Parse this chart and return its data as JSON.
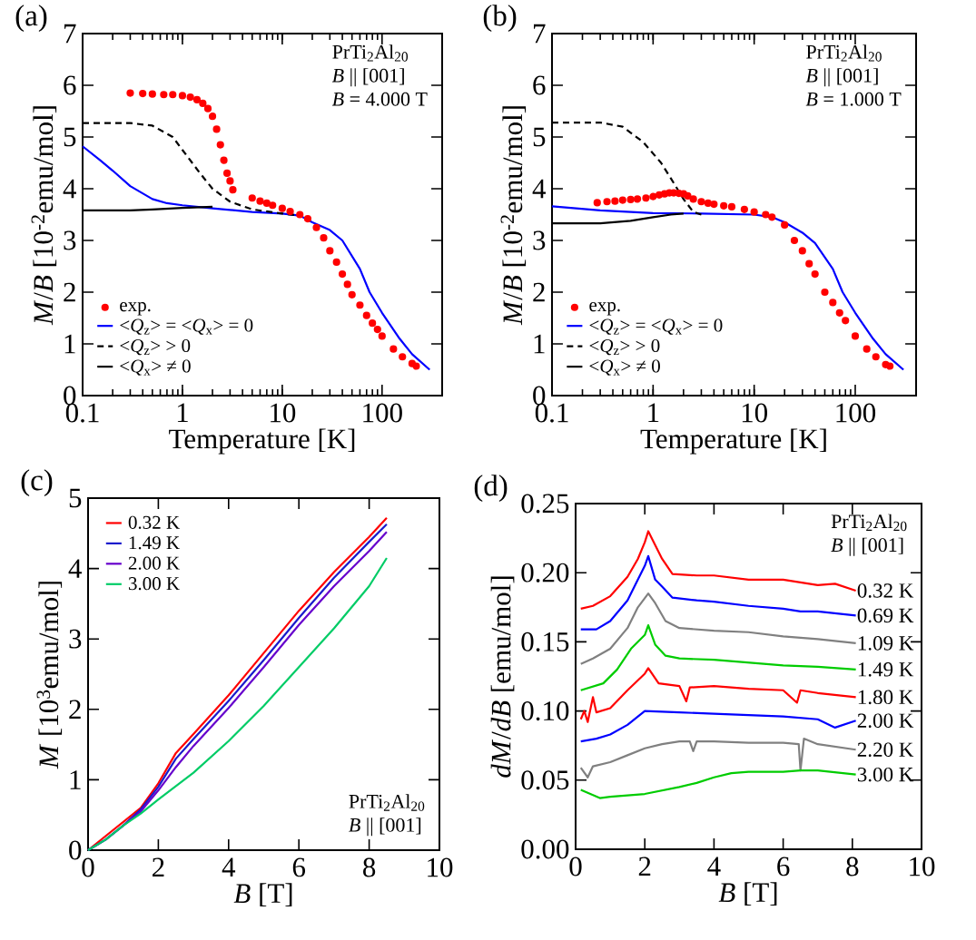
{
  "chart_data": [
    {
      "type": "line",
      "xlabel": "Temperature [K]",
      "ylabel": "*M*/*B* [10$^{-2}$emu/mol]",
      "log": "x",
      "xlim": [
        0.1,
        400
      ],
      "ylim": [
        0,
        7
      ],
      "xticks": [
        0.1,
        1,
        10,
        100
      ],
      "yticks": [
        0,
        1,
        2,
        3,
        4,
        5,
        6,
        7
      ],
      "legend": "bottom left",
      "annotations": [
        "(a)",
        "PrTi$_{2}$Al$_{20}$",
        "*B* || [001]",
        "*B* = 4.000 T"
      ],
      "series": [
        {
          "name": "exp.",
          "type": "scatter",
          "color": "#ff0000",
          "x": [
            0.3,
            0.4,
            0.5,
            0.65,
            0.8,
            1.0,
            1.2,
            1.4,
            1.6,
            1.8,
            2.0,
            2.2,
            2.4,
            2.6,
            2.8,
            3.0,
            3.2,
            5,
            6,
            7,
            8,
            10,
            12,
            15,
            18,
            22,
            26,
            30,
            35,
            40,
            45,
            50,
            60,
            70,
            80,
            90,
            100,
            130,
            160,
            200,
            220
          ],
          "values": [
            5.85,
            5.84,
            5.83,
            5.82,
            5.82,
            5.8,
            5.77,
            5.72,
            5.65,
            5.55,
            5.4,
            5.15,
            4.85,
            4.55,
            4.3,
            4.15,
            3.98,
            3.82,
            3.76,
            3.72,
            3.68,
            3.62,
            3.56,
            3.5,
            3.42,
            3.25,
            3.05,
            2.8,
            2.58,
            2.35,
            2.15,
            1.95,
            1.75,
            1.55,
            1.4,
            1.28,
            1.15,
            0.9,
            0.75,
            0.62,
            0.57
          ]
        },
        {
          "name": "<*Q*$_{z}$> = <*Q*$_{x}$> = 0",
          "color": "#0000ff",
          "x": [
            0.1,
            0.15,
            0.2,
            0.3,
            0.5,
            0.7,
            1,
            2,
            5,
            10,
            15,
            20,
            30,
            40,
            60,
            75,
            100,
            150,
            200,
            300
          ],
          "values": [
            4.82,
            4.55,
            4.35,
            4.05,
            3.8,
            3.72,
            3.68,
            3.62,
            3.55,
            3.52,
            3.48,
            3.35,
            3.2,
            3.0,
            2.45,
            2.0,
            1.6,
            1.1,
            0.8,
            0.5
          ]
        },
        {
          "name": "<*Q*$_{z}$> > 0",
          "line_style": "dashed",
          "color": "#000000",
          "x": [
            0.1,
            0.3,
            0.5,
            0.8,
            1.0,
            1.5,
            2,
            3,
            5,
            10,
            15
          ],
          "values": [
            5.27,
            5.27,
            5.22,
            5.0,
            4.75,
            4.3,
            4.0,
            3.75,
            3.6,
            3.52,
            3.48
          ]
        },
        {
          "name": "<*Q*$_{x}$> ≠ 0",
          "color": "#000000",
          "x": [
            0.1,
            0.3,
            0.5,
            1,
            2
          ],
          "values": [
            3.58,
            3.58,
            3.6,
            3.63,
            3.65
          ]
        }
      ]
    },
    {
      "type": "line",
      "xlabel": "Temperature [K]",
      "ylabel": "*M*/*B* [10$^{-2}$emu/mol]",
      "log": "x",
      "xlim": [
        0.1,
        400
      ],
      "ylim": [
        0,
        7
      ],
      "xticks": [
        0.1,
        1,
        10,
        100
      ],
      "yticks": [
        0,
        1,
        2,
        3,
        4,
        5,
        6,
        7
      ],
      "legend": "bottom left",
      "annotations": [
        "(b)",
        "PrTi$_{2}$Al$_{20}$",
        "*B* || [001]",
        "*B* = 1.000 T"
      ],
      "series": [
        {
          "name": "exp.",
          "type": "scatter",
          "color": "#ff0000",
          "x": [
            0.28,
            0.35,
            0.42,
            0.5,
            0.6,
            0.7,
            0.85,
            1.0,
            1.15,
            1.3,
            1.45,
            1.6,
            1.8,
            2.0,
            2.2,
            2.5,
            3,
            3.5,
            4,
            5,
            6,
            8,
            10,
            13,
            15,
            20,
            25,
            30,
            35,
            40,
            50,
            60,
            70,
            80,
            100,
            130,
            160,
            200,
            220
          ],
          "values": [
            3.73,
            3.75,
            3.76,
            3.78,
            3.79,
            3.8,
            3.82,
            3.85,
            3.88,
            3.9,
            3.92,
            3.92,
            3.91,
            3.9,
            3.86,
            3.8,
            3.75,
            3.72,
            3.7,
            3.67,
            3.65,
            3.6,
            3.55,
            3.5,
            3.45,
            3.3,
            3.0,
            2.8,
            2.55,
            2.35,
            2.0,
            1.8,
            1.6,
            1.45,
            1.15,
            0.9,
            0.75,
            0.6,
            0.57
          ]
        },
        {
          "name": "<*Q*$_{z}$> = <*Q*$_{x}$> = 0",
          "color": "#0000ff",
          "x": [
            0.1,
            0.3,
            1,
            3,
            10,
            15,
            20,
            30,
            40,
            60,
            75,
            100,
            150,
            200,
            300
          ],
          "values": [
            3.66,
            3.58,
            3.53,
            3.52,
            3.5,
            3.45,
            3.35,
            3.15,
            2.95,
            2.45,
            2.0,
            1.6,
            1.1,
            0.8,
            0.5
          ]
        },
        {
          "name": "<*Q*$_{z}$> > 0",
          "line_style": "dashed",
          "color": "#000000",
          "x": [
            0.1,
            0.3,
            0.5,
            0.8,
            1.2,
            1.5,
            2,
            2.5,
            3
          ],
          "values": [
            5.28,
            5.28,
            5.2,
            4.9,
            4.5,
            4.2,
            3.8,
            3.55,
            3.5
          ]
        },
        {
          "name": "<*Q*$_{x}$> ≠ 0",
          "color": "#000000",
          "x": [
            0.1,
            0.3,
            0.6,
            1,
            1.5,
            2
          ],
          "values": [
            3.33,
            3.33,
            3.38,
            3.45,
            3.5,
            3.52
          ]
        }
      ]
    },
    {
      "type": "line",
      "xlabel": "*B* [T]",
      "ylabel": "*M* [10$^{3}$emu/mol]",
      "xlim": [
        0,
        10
      ],
      "ylim": [
        0,
        5
      ],
      "xticks": [
        0,
        2,
        4,
        6,
        8,
        10
      ],
      "yticks": [
        0,
        1,
        2,
        3,
        4,
        5
      ],
      "legend": "top left",
      "annotations": [
        "(c)",
        "PrTi$_{2}$Al$_{20}$",
        "*B* || [001]"
      ],
      "series": [
        {
          "name": "0.32 K",
          "color": "#ff0000",
          "x": [
            0,
            0.5,
            1,
            1.5,
            2,
            2.5,
            3,
            4,
            5,
            6,
            7,
            8,
            8.5
          ],
          "values": [
            0,
            null,
            null,
            0.6,
            0.95,
            1.38,
            1.65,
            2.2,
            2.8,
            3.4,
            3.95,
            4.45,
            4.72
          ]
        },
        {
          "name": "1.49 K",
          "color": "#1a1acc",
          "x": [
            0,
            0.5,
            1,
            1.5,
            2,
            2.5,
            3,
            4,
            5,
            6,
            7,
            8,
            8.5
          ],
          "values": [
            0,
            0.15,
            0.35,
            0.58,
            0.9,
            1.3,
            1.58,
            2.12,
            2.7,
            3.3,
            3.87,
            4.38,
            4.63
          ]
        },
        {
          "name": "2.00 K",
          "color": "#6600cc",
          "x": [
            0,
            0.5,
            1,
            1.5,
            2,
            2.5,
            3,
            4,
            5,
            6,
            7,
            8,
            8.5
          ],
          "values": [
            0,
            0.15,
            0.35,
            0.55,
            0.85,
            1.18,
            1.48,
            2.02,
            2.6,
            3.2,
            3.75,
            4.25,
            4.52
          ]
        },
        {
          "name": "3.00 K",
          "color": "#00cc66",
          "x": [
            0,
            0.5,
            1,
            1.5,
            2,
            3,
            4,
            5,
            6,
            7,
            8,
            8.5
          ],
          "values": [
            0,
            0.15,
            0.35,
            0.52,
            0.72,
            1.1,
            1.55,
            2.05,
            2.6,
            3.15,
            3.75,
            4.15
          ]
        }
      ]
    },
    {
      "type": "line",
      "xlabel": "*B* [T]",
      "ylabel": "*dM*/*dB* [emu/mol]",
      "xlim": [
        0,
        10
      ],
      "ylim": [
        0,
        0.25
      ],
      "xticks": [
        0,
        2,
        4,
        6,
        8,
        10
      ],
      "yticks": [
        {
          "value": 0,
          "label": "0.00"
        },
        {
          "value": 0.05,
          "label": "0.05"
        },
        {
          "value": 0.1,
          "label": "0.10"
        },
        {
          "value": 0.15,
          "label": "0.15"
        },
        {
          "value": 0.2,
          "label": "0.20"
        },
        {
          "value": 0.25,
          "label": "0.25"
        }
      ],
      "annotations": [
        "(d)",
        "PrTi$_{2}$Al$_{20}$",
        "*B* || [001]"
      ],
      "series": [
        {
          "name": "0.32 K",
          "color": "#ff0000",
          "x": [
            0.15,
            0.5,
            1,
            1.5,
            1.8,
            2.0,
            2.1,
            2.3,
            2.5,
            2.8,
            3.5,
            4,
            5,
            6,
            7,
            7.5,
            8.1
          ],
          "values": [
            0.174,
            0.176,
            0.183,
            0.197,
            0.21,
            0.222,
            0.23,
            0.22,
            0.21,
            0.199,
            0.198,
            0.198,
            0.195,
            0.195,
            0.191,
            0.192,
            0.187
          ]
        },
        {
          "name": "0.69 K",
          "color": "#0000ff",
          "x": [
            0.15,
            0.6,
            1,
            1.5,
            1.8,
            2.0,
            2.1,
            2.3,
            2.5,
            2.8,
            3.5,
            4,
            5,
            6,
            6.5,
            7,
            8.1
          ],
          "values": [
            0.159,
            0.159,
            0.165,
            0.18,
            0.195,
            0.205,
            0.212,
            0.195,
            0.19,
            0.182,
            0.18,
            0.179,
            0.176,
            0.174,
            0.172,
            0.172,
            0.169
          ]
        },
        {
          "name": "1.09 K",
          "color": "#808080",
          "x": [
            0.15,
            0.5,
            1,
            1.5,
            1.8,
            2.1,
            2.3,
            2.6,
            3,
            4,
            5,
            6,
            7,
            8.1
          ],
          "values": [
            0.134,
            0.138,
            0.145,
            0.16,
            0.175,
            0.185,
            0.178,
            0.165,
            0.16,
            0.158,
            0.157,
            0.154,
            0.152,
            0.149
          ]
        },
        {
          "name": "1.49 K",
          "color": "#00cc00",
          "x": [
            0.15,
            0.8,
            1.2,
            1.6,
            2.0,
            2.1,
            2.3,
            2.6,
            3,
            4,
            5,
            6,
            7,
            8.1
          ],
          "values": [
            0.115,
            0.12,
            0.13,
            0.145,
            0.155,
            0.162,
            0.148,
            0.14,
            0.138,
            0.137,
            0.135,
            0.133,
            0.132,
            0.13
          ]
        },
        {
          "name": "1.80 K",
          "color": "#ff0000",
          "x": [
            0.15,
            0.25,
            0.35,
            0.5,
            0.6,
            1,
            1.5,
            2.0,
            2.1,
            2.4,
            3,
            3.2,
            3.3,
            4,
            5,
            6,
            6.4,
            6.5,
            7,
            8.1
          ],
          "values": [
            0.094,
            0.1,
            0.092,
            0.11,
            0.099,
            0.102,
            0.115,
            0.127,
            0.131,
            0.12,
            0.118,
            0.107,
            0.117,
            0.118,
            0.116,
            0.115,
            0.106,
            0.115,
            0.113,
            0.11
          ]
        },
        {
          "name": "2.00 K",
          "color": "#0000ff",
          "x": [
            0.15,
            0.6,
            1,
            1.5,
            2,
            3,
            4,
            5,
            6,
            7,
            7.5,
            8.1
          ],
          "values": [
            0.078,
            0.08,
            0.083,
            0.09,
            0.1,
            0.099,
            0.098,
            0.097,
            0.096,
            0.094,
            0.088,
            0.093
          ]
        },
        {
          "name": "2.20 K",
          "color": "#808080",
          "x": [
            0.15,
            0.35,
            0.5,
            1,
            1.5,
            2,
            2.5,
            3,
            3.3,
            3.4,
            3.5,
            4,
            5,
            6,
            6.45,
            6.5,
            6.6,
            7,
            8.1
          ],
          "values": [
            0.059,
            0.052,
            0.06,
            0.063,
            0.068,
            0.073,
            0.076,
            0.078,
            0.078,
            0.071,
            0.078,
            0.078,
            0.077,
            0.077,
            0.076,
            0.057,
            0.08,
            0.076,
            0.072
          ]
        },
        {
          "name": "3.00 K",
          "color": "#00cc00",
          "x": [
            0.15,
            0.7,
            1,
            2,
            3,
            3.5,
            4,
            4.5,
            5,
            6,
            6.5,
            7,
            8.1
          ],
          "values": [
            0.043,
            0.037,
            0.038,
            0.04,
            0.045,
            0.048,
            0.052,
            0.055,
            0.056,
            0.056,
            0.057,
            0.057,
            0.054
          ]
        }
      ]
    }
  ]
}
